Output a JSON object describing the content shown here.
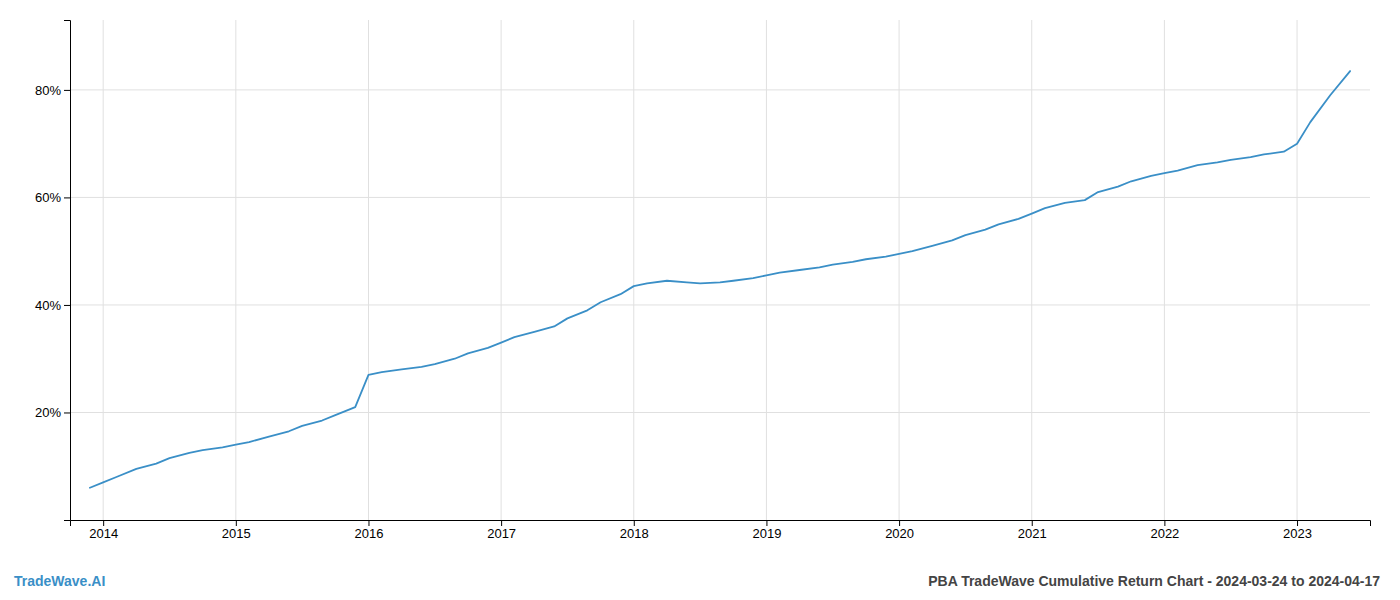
{
  "chart_data": {
    "type": "line",
    "title": "PBA TradeWave Cumulative Return Chart - 2024-03-24 to 2024-04-17",
    "annotations": [
      {
        "text": "TradeWave.AI",
        "color": "#3a8fc7"
      }
    ],
    "x": [
      2013.9,
      2014.0,
      2014.1,
      2014.25,
      2014.4,
      2014.5,
      2014.65,
      2014.75,
      2014.9,
      2015.0,
      2015.1,
      2015.25,
      2015.4,
      2015.5,
      2015.65,
      2015.75,
      2015.9,
      2016.0,
      2016.1,
      2016.25,
      2016.4,
      2016.5,
      2016.65,
      2016.75,
      2016.9,
      2017.0,
      2017.1,
      2017.25,
      2017.4,
      2017.5,
      2017.65,
      2017.75,
      2017.9,
      2018.0,
      2018.1,
      2018.25,
      2018.4,
      2018.5,
      2018.65,
      2018.75,
      2018.9,
      2019.0,
      2019.1,
      2019.25,
      2019.4,
      2019.5,
      2019.65,
      2019.75,
      2019.9,
      2020.0,
      2020.1,
      2020.25,
      2020.4,
      2020.5,
      2020.65,
      2020.75,
      2020.9,
      2021.0,
      2021.1,
      2021.25,
      2021.4,
      2021.5,
      2021.65,
      2021.75,
      2021.9,
      2022.0,
      2022.1,
      2022.25,
      2022.4,
      2022.5,
      2022.65,
      2022.75,
      2022.9,
      2023.0,
      2023.1,
      2023.25,
      2023.4
    ],
    "values": [
      6.0,
      7.0,
      8.0,
      9.5,
      10.5,
      11.5,
      12.5,
      13.0,
      13.5,
      14.0,
      14.5,
      15.5,
      16.5,
      17.5,
      18.5,
      19.5,
      21.0,
      27.0,
      27.5,
      28.0,
      28.5,
      29.0,
      30.0,
      31.0,
      32.0,
      33.0,
      34.0,
      35.0,
      36.0,
      37.5,
      39.0,
      40.5,
      42.0,
      43.5,
      44.0,
      44.5,
      44.2,
      44.0,
      44.2,
      44.5,
      45.0,
      45.5,
      46.0,
      46.5,
      47.0,
      47.5,
      48.0,
      48.5,
      49.0,
      49.5,
      50.0,
      51.0,
      52.0,
      53.0,
      54.0,
      55.0,
      56.0,
      57.0,
      58.0,
      59.0,
      59.5,
      61.0,
      62.0,
      63.0,
      64.0,
      64.5,
      65.0,
      66.0,
      66.5,
      67.0,
      67.5,
      68.0,
      68.5,
      70.0,
      74.0,
      79.0,
      83.5
    ],
    "color": "#3a8fc7",
    "xlim": [
      2013.75,
      2023.55
    ],
    "xticks": [
      2014,
      2015,
      2016,
      2017,
      2018,
      2019,
      2020,
      2021,
      2022,
      2023
    ],
    "ylim": [
      0,
      93
    ],
    "yticks": [
      {
        "value": 20,
        "label": "20%"
      },
      {
        "value": 40,
        "label": "40%"
      },
      {
        "value": 60,
        "label": "60%"
      },
      {
        "value": 80,
        "label": "80%"
      }
    ],
    "grid": true
  }
}
